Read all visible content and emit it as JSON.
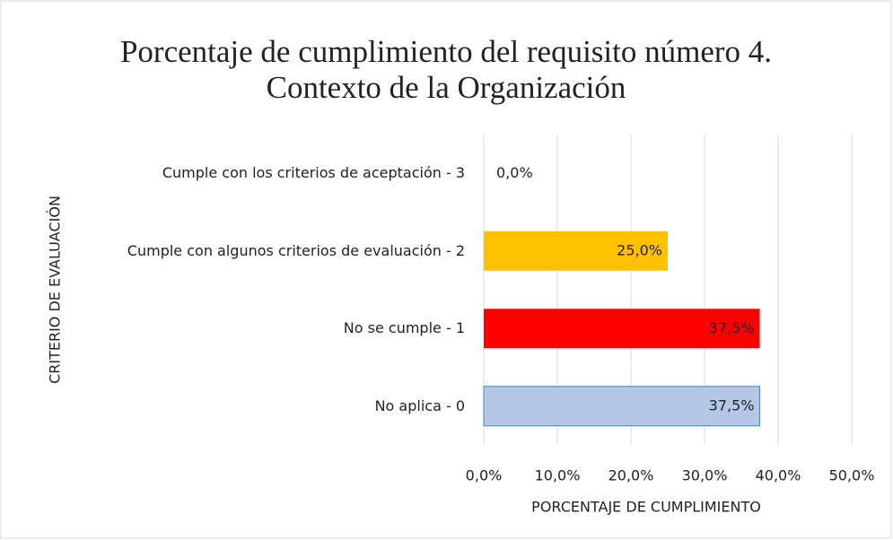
{
  "chart_data": {
    "type": "barh",
    "title": "Porcentaje de cumplimiento del requisito número 4. Contexto de la Organización",
    "xlabel": "PORCENTAJE DE CUMPLIMIENTO",
    "ylabel": "CRITERIO DE EVALUACIÓN",
    "categories": [
      "Cumple con los criterios de aceptación - 3",
      "Cumple con algunos criterios de evaluación - 2",
      "No se cumple - 1",
      "No aplica - 0"
    ],
    "values": [
      0,
      25,
      37.5,
      37.5
    ],
    "value_labels": [
      "0,0%",
      "25,0%",
      "37,5%",
      "37,5%"
    ],
    "colors": [
      null,
      "#ffc000",
      "#ff0000",
      "#b4c7e7"
    ],
    "xlim": [
      0,
      50
    ],
    "xticks": [
      {
        "value": 0,
        "label": "0,0%"
      },
      {
        "value": 10,
        "label": "10,0%"
      },
      {
        "value": 20,
        "label": "20,0%"
      },
      {
        "value": 30,
        "label": "30,0%"
      },
      {
        "value": 40,
        "label": "40,0%"
      },
      {
        "value": 50,
        "label": "50,0%"
      }
    ],
    "grid": true
  }
}
